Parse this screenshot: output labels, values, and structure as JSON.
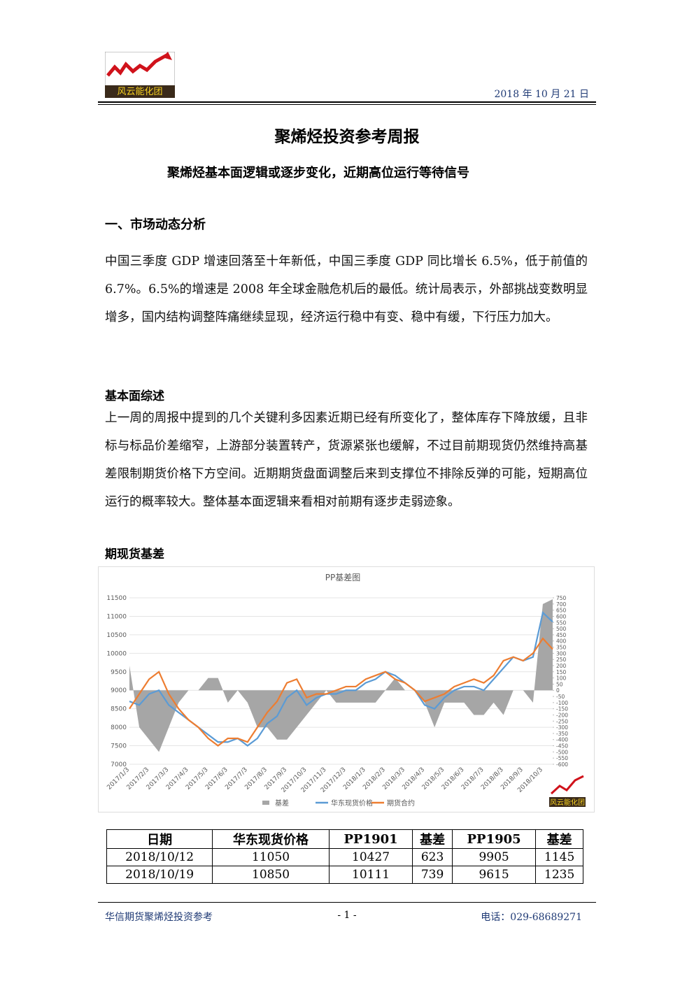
{
  "header": {
    "logo_text": "风云能化团",
    "date": "2018 年 10 月 21 日"
  },
  "title": "聚烯烃投资参考周报",
  "subtitle": "聚烯烃基本面逻辑或逐步变化，近期高位运行等待信号",
  "section1": {
    "heading": "一、市场动态分析",
    "paragraph": "中国三季度 GDP 增速回落至十年新低，中国三季度 GDP 同比增长 6.5%，低于前值的 6.7%。6.5%的增速是 2008 年全球金融危机后的最低。统计局表示，外部挑战变数明显增多，国内结构调整阵痛继续显现，经济运行稳中有变、稳中有缓，下行压力加大。"
  },
  "section2": {
    "heading": "基本面综述",
    "paragraph": "上一周的周报中提到的几个关键利多因素近期已经有所变化了，整体库存下降放缓，且非标与标品价差缩窄，上游部分装置转产，货源紧张也缓解，不过目前期现货仍然维持高基差限制期货价格下方空间。近期期货盘面调整后来到支撑位不排除反弹的可能，短期高位运行的概率较大。整体基本面逻辑来看相对前期有逐步走弱迹象。"
  },
  "section3": {
    "heading": "期现货基差"
  },
  "chart_data": {
    "type": "line",
    "title": "PP基差图",
    "categories": [
      "2017/1/3",
      null,
      "2017/2/3",
      null,
      "2017/3/3",
      null,
      "2017/4/3",
      null,
      "2017/5/3",
      null,
      "2017/6/3",
      null,
      "2017/7/3",
      null,
      "2017/8/3",
      null,
      "2017/9/3",
      null,
      "2017/10/3",
      null,
      "2017/11/3",
      null,
      "2017/12/3",
      null,
      "2018/1/3",
      null,
      "2018/2/3",
      null,
      "2018/3/3",
      null,
      "2018/4/3",
      null,
      "2018/5/3",
      null,
      "2018/6/3",
      null,
      "2018/7/3",
      null,
      "2018/8/3",
      null,
      "2018/9/3",
      null,
      "2018/10/3",
      null
    ],
    "series": [
      {
        "name": "基差",
        "type": "area",
        "axis": "y2",
        "color": "#a6a6a6",
        "values": [
          200,
          -300,
          -400,
          -500,
          -300,
          -100,
          0,
          0,
          100,
          100,
          -100,
          0,
          -100,
          -300,
          -300,
          -400,
          -400,
          -300,
          -200,
          -100,
          0,
          -100,
          -100,
          -100,
          -100,
          -100,
          0,
          100,
          0,
          0,
          -100,
          -300,
          -100,
          -100,
          -100,
          -200,
          -200,
          -100,
          -200,
          0,
          0,
          -100,
          700,
          739
        ]
      },
      {
        "name": "华东现货价格",
        "type": "line",
        "color": "#5b9bd5",
        "values": [
          8700,
          8600,
          8900,
          9000,
          8600,
          8400,
          8200,
          8000,
          7800,
          7600,
          7600,
          7700,
          7500,
          7700,
          8100,
          8300,
          8800,
          9000,
          8600,
          8800,
          8900,
          8900,
          9000,
          9000,
          9200,
          9300,
          9500,
          9400,
          9200,
          9000,
          8600,
          8500,
          8800,
          9000,
          9100,
          9100,
          9000,
          9300,
          9600,
          9900,
          9800,
          9900,
          11100,
          10850
        ]
      },
      {
        "name": "期货合约",
        "type": "line",
        "color": "#ed7d31",
        "values": [
          8500,
          8900,
          9300,
          9500,
          8900,
          8500,
          8200,
          8000,
          7700,
          7500,
          7700,
          7700,
          7600,
          8000,
          8400,
          8700,
          9200,
          9300,
          8800,
          8900,
          8900,
          9000,
          9100,
          9100,
          9300,
          9400,
          9500,
          9300,
          9200,
          9000,
          8700,
          8800,
          8900,
          9100,
          9200,
          9300,
          9200,
          9400,
          9800,
          9900,
          9800,
          10000,
          10400,
          10111
        ]
      }
    ],
    "ylim": [
      7000,
      11500
    ],
    "yticks": [
      7000,
      7500,
      8000,
      8500,
      9000,
      9500,
      10000,
      10500,
      11000,
      11500
    ],
    "y2lim": [
      -600,
      750
    ],
    "y2ticks": [
      -600,
      -550,
      -500,
      -450,
      -400,
      -350,
      -300,
      -250,
      -200,
      -150,
      -100,
      -50,
      0,
      50,
      100,
      150,
      200,
      250,
      300,
      350,
      400,
      450,
      500,
      550,
      600,
      650,
      700,
      750
    ],
    "legend": "bottom"
  },
  "table": {
    "header": [
      "日期",
      "华东现货价格",
      "PP1901",
      "基差",
      "PP1905",
      "基差"
    ],
    "rows": [
      [
        "2018/10/12",
        11050,
        10427,
        623,
        9905,
        1145
      ],
      [
        "2018/10/19",
        10850,
        10111,
        739,
        9615,
        1235
      ]
    ]
  },
  "footer": {
    "left": "华信期货聚烯烃投资参考",
    "center": "- 1 -",
    "right": "电话：029-68689271"
  }
}
